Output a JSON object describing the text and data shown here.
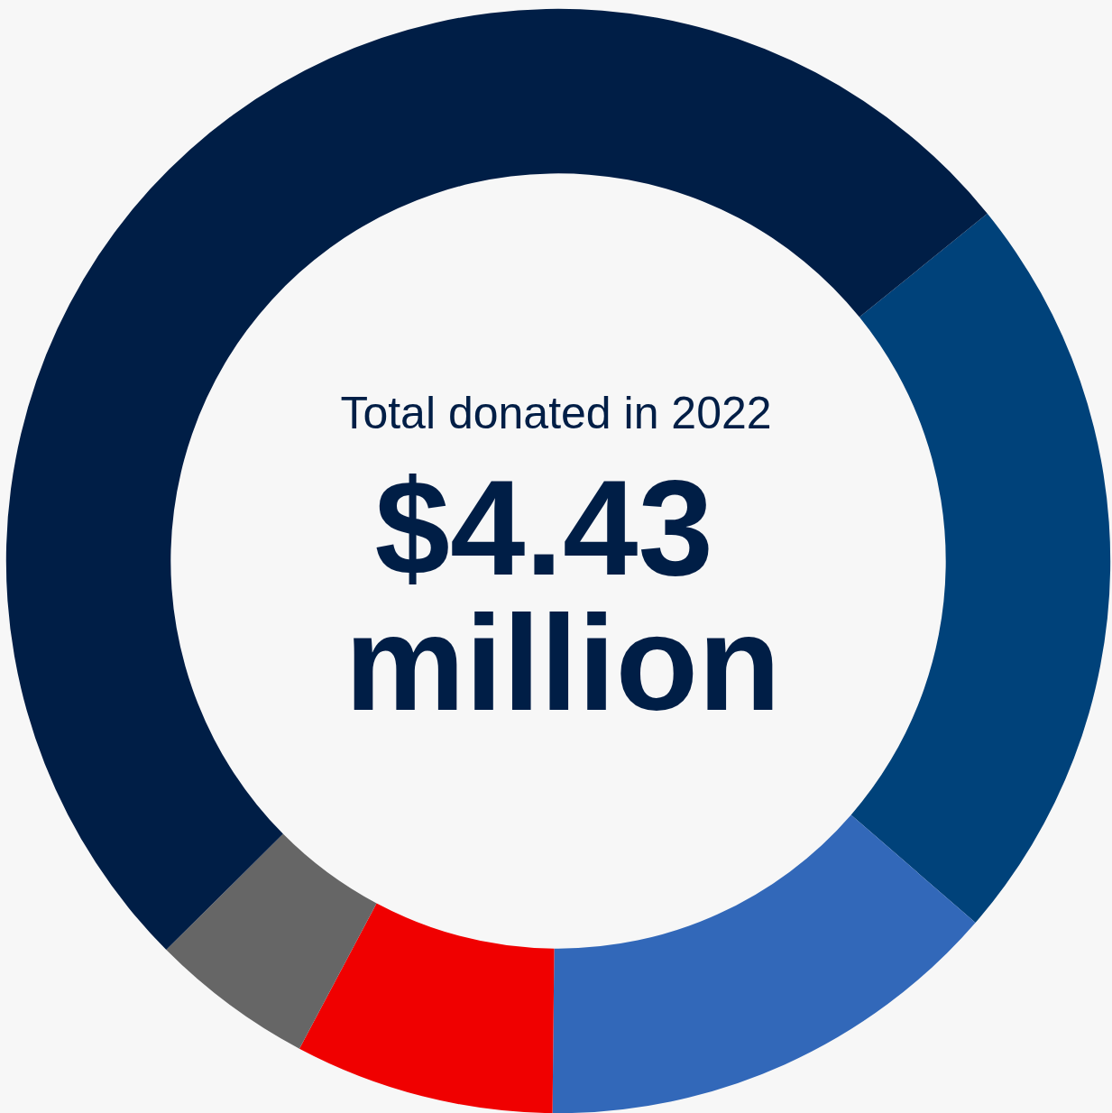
{
  "chart_data": {
    "type": "donut",
    "title": "Total donated in 2022",
    "subtitle": "$4.43 million",
    "categories": [
      null,
      null,
      null,
      null,
      null
    ],
    "values": [
      22.2,
      13.8,
      7.6,
      4.8,
      51.6
    ],
    "colors": [
      "#00427a",
      "#3268b9",
      "#f00000",
      "#666666",
      "#001e46"
    ]
  }
}
